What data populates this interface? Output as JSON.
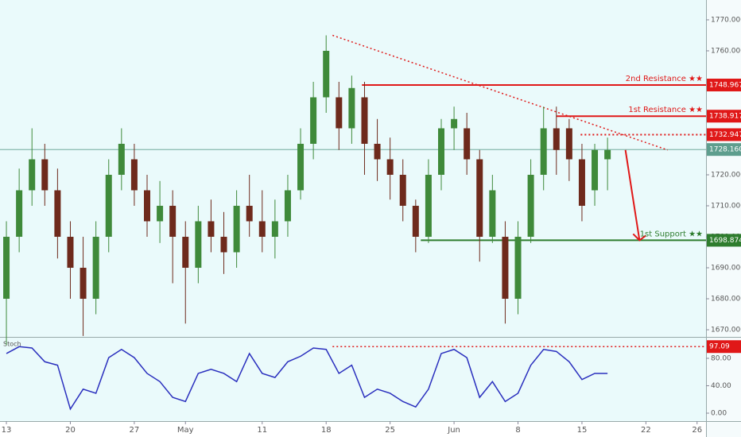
{
  "chart_data": [
    {
      "type": "candlestick",
      "x": [
        0,
        1,
        2,
        3,
        4,
        5,
        6,
        7,
        8,
        9,
        10,
        11,
        12,
        13,
        14,
        15,
        16,
        17,
        18,
        19,
        20,
        21,
        22,
        23,
        24,
        25,
        26,
        27,
        28,
        29,
        30,
        31,
        32,
        33,
        34,
        35,
        36,
        37,
        38,
        39,
        40,
        41,
        42,
        43,
        44,
        45,
        46,
        47
      ],
      "open": [
        1680,
        1700,
        1715,
        1725,
        1715,
        1700,
        1690,
        1680,
        1700,
        1720,
        1725,
        1715,
        1705,
        1710,
        1700,
        1690,
        1705,
        1700,
        1695,
        1710,
        1705,
        1700,
        1705,
        1715,
        1730,
        1745,
        1745,
        1735,
        1745,
        1730,
        1725,
        1720,
        1710,
        1700,
        1720,
        1735,
        1735,
        1725,
        1700,
        1700,
        1680,
        1700,
        1720,
        1735,
        1735,
        1725,
        1715,
        1725
      ],
      "high": [
        1705,
        1722,
        1735,
        1730,
        1722,
        1705,
        1700,
        1705,
        1725,
        1735,
        1730,
        1720,
        1718,
        1715,
        1705,
        1710,
        1712,
        1708,
        1715,
        1720,
        1715,
        1712,
        1720,
        1735,
        1750,
        1765,
        1750,
        1752,
        1750,
        1738,
        1732,
        1725,
        1712,
        1725,
        1738,
        1742,
        1740,
        1728,
        1720,
        1705,
        1705,
        1725,
        1742,
        1742,
        1738,
        1730,
        1730,
        1732
      ],
      "low": [
        1665,
        1695,
        1710,
        1710,
        1693,
        1680,
        1668,
        1675,
        1695,
        1715,
        1710,
        1700,
        1698,
        1685,
        1672,
        1685,
        1695,
        1688,
        1690,
        1700,
        1695,
        1693,
        1700,
        1712,
        1725,
        1740,
        1728,
        1730,
        1720,
        1718,
        1712,
        1705,
        1695,
        1698,
        1715,
        1728,
        1720,
        1692,
        1698,
        1672,
        1675,
        1698,
        1715,
        1720,
        1718,
        1705,
        1710,
        1715
      ],
      "close": [
        1700,
        1715,
        1725,
        1715,
        1700,
        1690,
        1680,
        1700,
        1720,
        1730,
        1715,
        1705,
        1710,
        1700,
        1690,
        1705,
        1700,
        1695,
        1710,
        1705,
        1700,
        1705,
        1715,
        1730,
        1745,
        1760,
        1735,
        1748,
        1730,
        1725,
        1720,
        1710,
        1700,
        1720,
        1735,
        1738,
        1725,
        1700,
        1715,
        1680,
        1700,
        1720,
        1735,
        1728,
        1725,
        1710,
        1728,
        1728
      ],
      "up_color": "#3f8a3a",
      "down_color": "#6e2a1c",
      "xlim": [
        -0.5,
        54.7
      ],
      "xticks": [
        {
          "value": 0,
          "label": "13"
        },
        {
          "value": 5,
          "label": "20"
        },
        {
          "value": 10,
          "label": "27"
        },
        {
          "value": 14,
          "label": "May"
        },
        {
          "value": 20,
          "label": "11"
        },
        {
          "value": 25,
          "label": "18"
        },
        {
          "value": 30,
          "label": "25"
        },
        {
          "value": 35,
          "label": "Jun"
        },
        {
          "value": 40,
          "label": "8"
        },
        {
          "value": 45,
          "label": "15"
        },
        {
          "value": 50,
          "label": "22"
        },
        {
          "value": 54,
          "label": "26"
        }
      ],
      "ylim": [
        1667.7,
        1776.4
      ],
      "yticks": [
        {
          "value": 1670,
          "label": "1670.000"
        },
        {
          "value": 1680,
          "label": "1680.000"
        },
        {
          "value": 1690,
          "label": "1690.000"
        },
        {
          "value": 1700,
          "label": "1700.000"
        },
        {
          "value": 1710,
          "label": "1710.000"
        },
        {
          "value": 1720,
          "label": "1720.000"
        },
        {
          "value": 1760,
          "label": "1760.000"
        },
        {
          "value": 1770,
          "label": "1770.000"
        }
      ],
      "levels": [
        {
          "name": "2nd Resistance ★★",
          "value": 1748.967,
          "value_label": "1748.967",
          "from": 27.8,
          "color": "#e01818",
          "style": "solid"
        },
        {
          "name": "1st Resistance ★★",
          "value": 1738.917,
          "value_label": "1738.917",
          "from": 43,
          "color": "#e01818",
          "style": "solid"
        },
        {
          "value": 1732.947,
          "value_label": "1732.947",
          "from": 44.9,
          "color": "#e01818",
          "style": "dotted"
        },
        {
          "value": 1728.16,
          "value_label": "1728.160",
          "from": -0.5,
          "color": "#5e9e8e",
          "style": "thin"
        },
        {
          "name": "1st Support ★★",
          "value": 1698.874,
          "value_label": "1698.874",
          "from": 32.4,
          "color": "#2e7d2e",
          "style": "solid"
        }
      ],
      "trendline": {
        "x": [
          25.5,
          51.7
        ],
        "y": [
          1765,
          1728
        ],
        "color": "#e01818"
      },
      "arrow": {
        "x": [
          48.4,
          49.5
        ],
        "y": [
          1728,
          1698.874
        ],
        "color": "#e01818"
      }
    },
    {
      "type": "line",
      "name": "Stoch",
      "color": "#2a2fbe",
      "x": [
        0,
        1,
        2,
        3,
        4,
        5,
        6,
        7,
        8,
        9,
        10,
        11,
        12,
        13,
        14,
        15,
        16,
        17,
        18,
        19,
        20,
        21,
        22,
        23,
        24,
        25,
        26,
        27,
        28,
        29,
        30,
        31,
        32,
        33,
        34,
        35,
        36,
        37,
        38,
        39,
        40,
        41,
        42,
        43,
        44,
        45,
        46,
        47
      ],
      "values": [
        87,
        97,
        95,
        75,
        70,
        6,
        35,
        29,
        81,
        93,
        81,
        58,
        46,
        23,
        17,
        58,
        64,
        58,
        46,
        87,
        58,
        52,
        75,
        83,
        95,
        93,
        58,
        70,
        23,
        35,
        29,
        17,
        9,
        35,
        87,
        93,
        81,
        23,
        46,
        17,
        29,
        70,
        93,
        90,
        75,
        49,
        58,
        58
      ],
      "xlim": [
        -0.5,
        54.7
      ],
      "ylim": [
        -11.6,
        110.1
      ],
      "yticks": [
        {
          "value": 0,
          "label": "0.00"
        },
        {
          "value": 40,
          "label": "40.00"
        },
        {
          "value": 80,
          "label": "80.00"
        }
      ],
      "levels": [
        {
          "value": 97.09,
          "value_label": "97.09",
          "from": 25.5,
          "color": "#e01818",
          "style": "dotted"
        }
      ]
    }
  ]
}
